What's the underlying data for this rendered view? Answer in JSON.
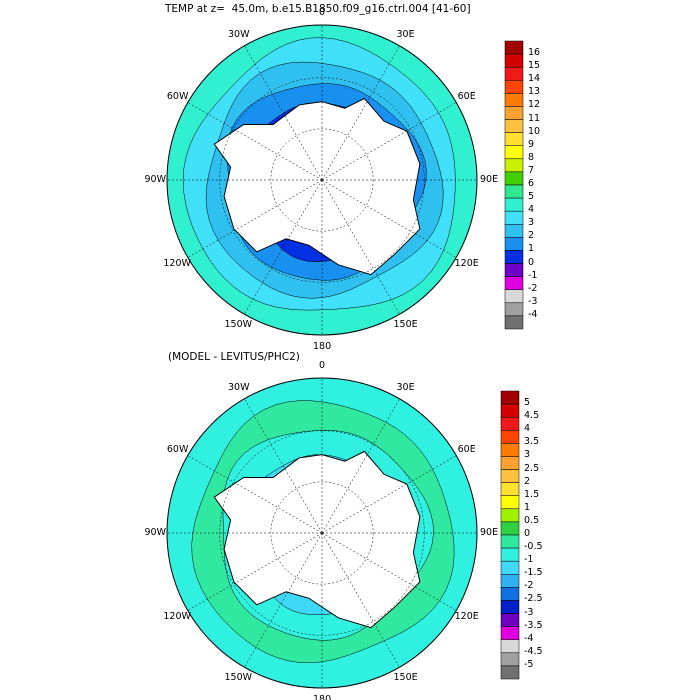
{
  "title": "TEMP at z=  45.0m, b.e15.B1850.f09_g16.ctrl.004 [41-60]",
  "panels": [
    {
      "id": "top",
      "longitude_labels": [
        "0",
        "30E",
        "60E",
        "90E",
        "120E",
        "150E",
        "180",
        "150W",
        "120W",
        "90W",
        "60W",
        "30W"
      ],
      "colorbar": {
        "labels": [
          "16",
          "15",
          "14",
          "13",
          "12",
          "11",
          "10",
          "9",
          "8",
          "7",
          "6",
          "5",
          "4",
          "3",
          "2",
          "1",
          "0",
          "-1",
          "-2",
          "-3",
          "-4"
        ],
        "colors": [
          "#a00000",
          "#d40000",
          "#f01818",
          "#ff4400",
          "#ff7a00",
          "#ffa030",
          "#ffc040",
          "#ffe030",
          "#ffff00",
          "#c8f000",
          "#40d000",
          "#30e890",
          "#30f0d0",
          "#40e0f8",
          "#30c0f0",
          "#1890f0",
          "#0030e0",
          "#7000c8",
          "#e000e0",
          "#d8d8d8",
          "#a0a0a0",
          "#707070"
        ]
      }
    },
    {
      "id": "bottom",
      "subtitle": "(MODEL - LEVITUS/PHC2)",
      "longitude_labels": [
        "0",
        "30E",
        "60E",
        "90E",
        "120E",
        "150E",
        "180",
        "150W",
        "120W",
        "90W",
        "60W",
        "30W"
      ],
      "colorbar": {
        "labels": [
          "5",
          "4.5",
          "4",
          "3.5",
          "3",
          "2.5",
          "2",
          "1.5",
          "1",
          "0.5",
          "0",
          "-0.5",
          "-1",
          "-1.5",
          "-2",
          "-2.5",
          "-3",
          "-3.5",
          "-4",
          "-4.5",
          "-5"
        ],
        "colors": [
          "#a00000",
          "#d40000",
          "#f01818",
          "#ff4400",
          "#ff7a00",
          "#ffa030",
          "#ffc040",
          "#ffe030",
          "#ffff00",
          "#a0f000",
          "#30d040",
          "#30e8a0",
          "#30f0e0",
          "#40d8f8",
          "#30b0f0",
          "#1070e0",
          "#0020c8",
          "#7000c0",
          "#e000e0",
          "#d8d8d8",
          "#a0a0a0",
          "#707070"
        ]
      }
    }
  ],
  "colors": {
    "land": "#ffffff",
    "coast": "#000000",
    "gridline": "#000000"
  }
}
